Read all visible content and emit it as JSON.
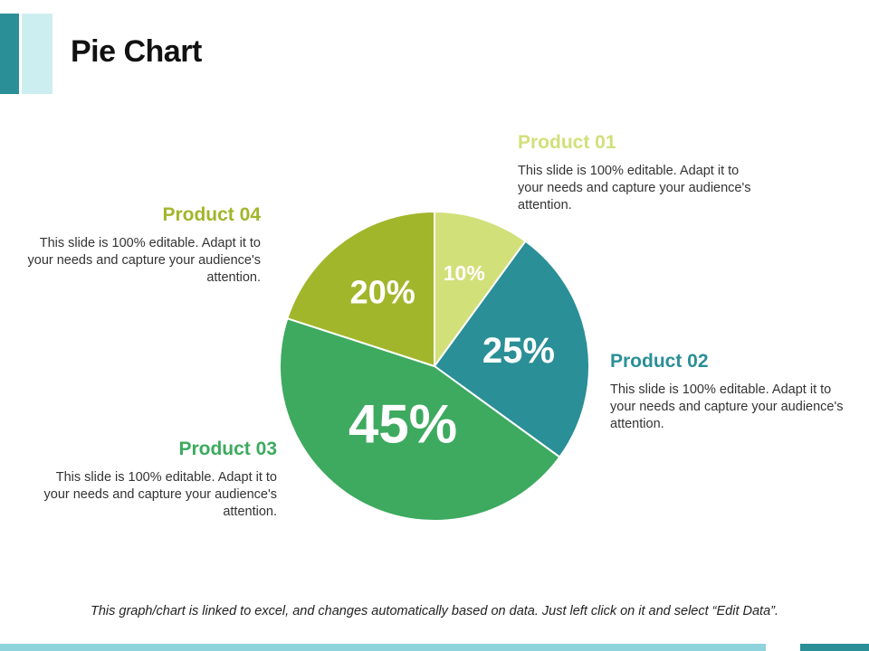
{
  "slide": {
    "title": "Pie Chart",
    "footer_note": "This graph/chart is linked to excel, and changes automatically based on data. Just left click on it and select “Edit Data”."
  },
  "products": [
    {
      "name": "Product 01",
      "desc": "This slide is 100% editable. Adapt it to your needs and capture your audience's attention.",
      "color": "#d2e07a"
    },
    {
      "name": "Product 02",
      "desc": "This slide is 100% editable. Adapt it to your needs and capture your audience's attention.",
      "color": "#2a8f97"
    },
    {
      "name": "Product 03",
      "desc": "This slide is 100% editable. Adapt it to your needs and capture your audience's attention.",
      "color": "#3daa5f"
    },
    {
      "name": "Product 04",
      "desc": "This slide is 100% editable. Adapt it to your needs and capture your audience's attention.",
      "color": "#a2b62b"
    }
  ],
  "chart_data": {
    "type": "pie",
    "categories": [
      "Product 01",
      "Product 02",
      "Product 03",
      "Product 04"
    ],
    "values": [
      10,
      25,
      45,
      20
    ],
    "labels": [
      "10%",
      "25%",
      "45%",
      "20%"
    ],
    "colors": [
      "#d2e07a",
      "#2a8f97",
      "#3daa5f",
      "#a2b62b"
    ],
    "start": "12 o'clock",
    "direction": "clockwise"
  }
}
